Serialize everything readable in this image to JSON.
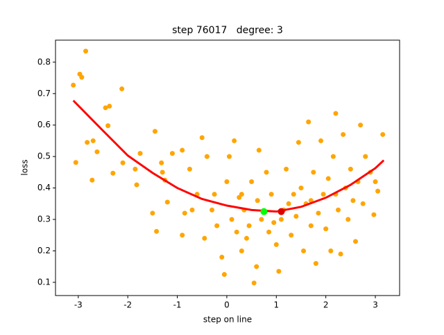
{
  "chart_data": {
    "type": "scatter",
    "title": "step 76017   degree: 3",
    "x_label": "step on line",
    "y_label": "loss",
    "xlim": [
      -3.46,
      3.49
    ],
    "ylim": [
      0.058,
      0.87
    ],
    "xticks": [
      -3,
      -2,
      -1,
      0,
      1,
      2,
      3
    ],
    "yticks": [
      0.1,
      0.2,
      0.3,
      0.4,
      0.5,
      0.6,
      0.7,
      0.8
    ],
    "series": [
      {
        "kind": "scatter",
        "color": "#ffa500",
        "x": [
          -2.85,
          -3.1,
          -2.97,
          -2.93,
          -3.05,
          -2.82,
          -2.7,
          -2.62,
          -2.72,
          -2.45,
          -2.37,
          -2.4,
          -2.3,
          -2.12,
          -2.1,
          -1.85,
          -1.82,
          -1.75,
          -1.45,
          -1.5,
          -1.42,
          -1.32,
          -1.3,
          -1.25,
          -1.2,
          -1.1,
          -0.9,
          -0.85,
          -0.9,
          -0.75,
          -0.6,
          -0.5,
          -0.4,
          -0.3,
          -0.2,
          -0.1,
          -0.05,
          0,
          0.05,
          0.1,
          0.15,
          0.2,
          0.25,
          0.3,
          0.35,
          0.45,
          0.5,
          0.55,
          0.6,
          0.62,
          0.65,
          0.7,
          0.8,
          0.85,
          0.9,
          1.0,
          1.05,
          1.1,
          1.2,
          1.25,
          1.3,
          1.4,
          1.45,
          1.5,
          1.55,
          1.6,
          1.65,
          1.7,
          1.75,
          1.8,
          1.85,
          1.9,
          1.95,
          2.0,
          2.05,
          2.1,
          2.15,
          2.2,
          2.25,
          2.3,
          2.35,
          2.4,
          2.45,
          2.5,
          2.55,
          2.6,
          2.65,
          2.7,
          2.75,
          2.8,
          2.9,
          2.97,
          3.0,
          3.05,
          3.15,
          -0.7,
          -0.45,
          0.4,
          1.15,
          1.7,
          0.95,
          -0.25,
          0.3,
          1.35,
          2.2
        ],
        "values": [
          0.835,
          0.727,
          0.762,
          0.752,
          0.481,
          0.545,
          0.55,
          0.515,
          0.425,
          0.655,
          0.66,
          0.598,
          0.447,
          0.715,
          0.48,
          0.46,
          0.41,
          0.51,
          0.58,
          0.32,
          0.262,
          0.48,
          0.45,
          0.425,
          0.355,
          0.51,
          0.52,
          0.32,
          0.25,
          0.46,
          0.38,
          0.56,
          0.5,
          0.33,
          0.28,
          0.18,
          0.125,
          0.42,
          0.5,
          0.3,
          0.55,
          0.26,
          0.37,
          0.2,
          0.33,
          0.28,
          0.42,
          0.098,
          0.15,
          0.36,
          0.52,
          0.3,
          0.45,
          0.26,
          0.38,
          0.22,
          0.135,
          0.3,
          0.46,
          0.35,
          0.25,
          0.31,
          0.545,
          0.4,
          0.2,
          0.35,
          0.61,
          0.28,
          0.45,
          0.16,
          0.32,
          0.55,
          0.38,
          0.27,
          0.43,
          0.2,
          0.5,
          0.637,
          0.33,
          0.19,
          0.57,
          0.4,
          0.3,
          0.46,
          0.36,
          0.23,
          0.42,
          0.6,
          0.35,
          0.5,
          0.45,
          0.315,
          0.42,
          0.39,
          0.57,
          0.33,
          0.24,
          0.24,
          0.33,
          0.36,
          0.29,
          0.38,
          0.38,
          0.38,
          0.38
        ]
      },
      {
        "kind": "line",
        "color": "#ff0000",
        "x": [
          -3.1,
          -2.5,
          -2,
          -1.5,
          -1,
          -0.5,
          0,
          0.5,
          1,
          1.5,
          2,
          2.5,
          3,
          3.17
        ],
        "values": [
          0.678,
          0.582,
          0.503,
          0.448,
          0.4,
          0.365,
          0.344,
          0.33,
          0.325,
          0.34,
          0.369,
          0.41,
          0.463,
          0.488
        ]
      },
      {
        "kind": "point",
        "color": "#00ff00",
        "x": [
          0.75
        ],
        "values": [
          0.325
        ]
      },
      {
        "kind": "point",
        "color": "#e00000",
        "x": [
          1.1
        ],
        "values": [
          0.325
        ]
      }
    ]
  }
}
